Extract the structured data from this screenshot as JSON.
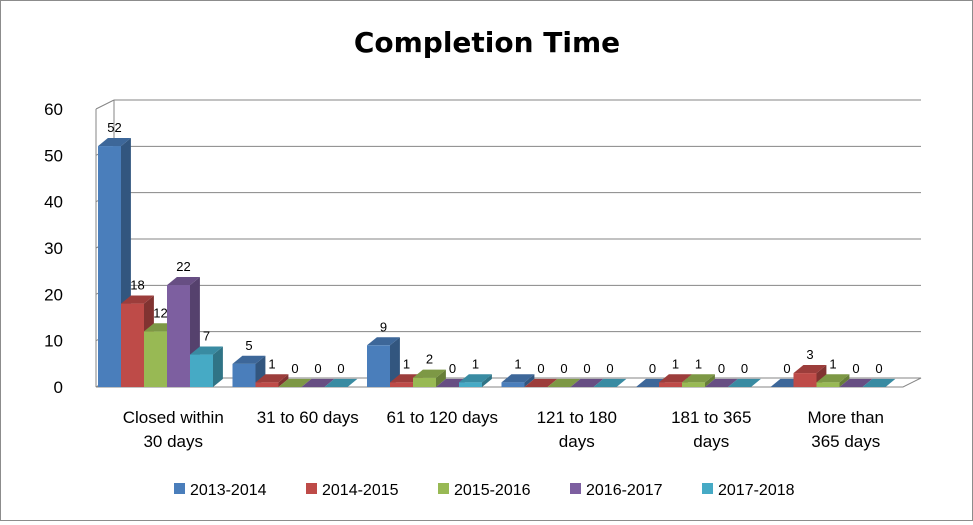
{
  "chart_data": {
    "type": "bar",
    "title": "Completion Time",
    "categories": [
      [
        "Closed within",
        "30 days"
      ],
      [
        "31 to 60 days"
      ],
      [
        "61 to 120 days"
      ],
      [
        "121 to 180",
        "days"
      ],
      [
        "181 to 365",
        "days"
      ],
      [
        "More than",
        "365 days"
      ]
    ],
    "series": [
      {
        "name": "2013-2014",
        "color": "#4a7ebb",
        "values": [
          52,
          5,
          9,
          1,
          0,
          0
        ]
      },
      {
        "name": "2014-2015",
        "color": "#be4b48",
        "values": [
          18,
          1,
          1,
          0,
          1,
          3
        ]
      },
      {
        "name": "2015-2016",
        "color": "#98b954",
        "values": [
          12,
          0,
          2,
          0,
          1,
          1
        ]
      },
      {
        "name": "2016-2017",
        "color": "#7d5fa0",
        "values": [
          22,
          0,
          0,
          0,
          0,
          0
        ]
      },
      {
        "name": "2017-2018",
        "color": "#46aac5",
        "values": [
          7,
          0,
          1,
          0,
          0,
          0
        ]
      }
    ],
    "ylim": [
      0,
      60
    ],
    "yticks": [
      0,
      10,
      20,
      30,
      40,
      50,
      60
    ],
    "grid": true,
    "legend": "bottom",
    "style": "3d-clustered-column"
  }
}
